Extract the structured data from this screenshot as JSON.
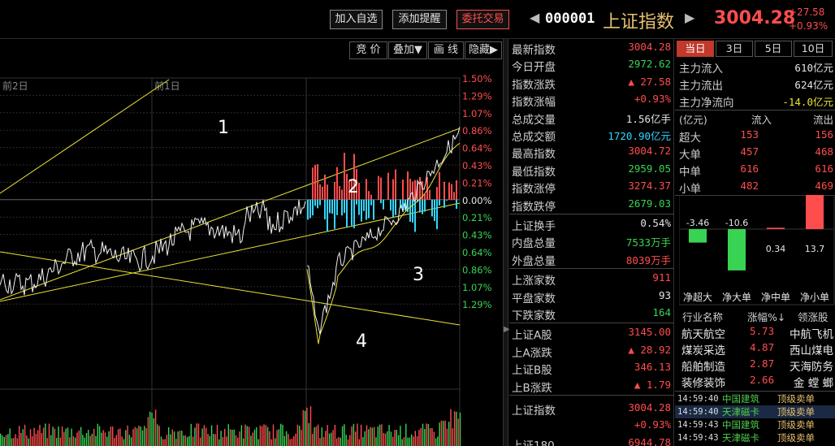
{
  "header": {
    "btn_add_watch": "加入自选",
    "btn_add_alert": "添加提醒",
    "btn_trade": "委托交易",
    "nav_prev": "◀",
    "nav_next": "▶",
    "code": "000001",
    "name": "上证指数",
    "price": "3004.28",
    "change": "+27.58",
    "change_pct": "+0.93%"
  },
  "chart_tools": [
    "竞 价",
    "叠加▼",
    "画 线",
    "隐藏▶"
  ],
  "colors": {
    "up": "#ff4d4d",
    "down": "#39d353",
    "flat": "#e6e6e6",
    "cyan": "#33d6ff",
    "yellow": "#e8e337",
    "gold": "#e8c070"
  },
  "chart_data": {
    "type": "line",
    "day_labels": [
      "前2日",
      "前1日"
    ],
    "annotations": [
      "1",
      "2",
      "3",
      "4"
    ],
    "pct_axis": [
      {
        "label": "1.50%",
        "dir": "up"
      },
      {
        "label": "1.29%",
        "dir": "up"
      },
      {
        "label": "1.07%",
        "dir": "up"
      },
      {
        "label": "0.86%",
        "dir": "up"
      },
      {
        "label": "0.64%",
        "dir": "up"
      },
      {
        "label": "0.43%",
        "dir": "up"
      },
      {
        "label": "0.21%",
        "dir": "up"
      },
      {
        "label": "0.00%",
        "dir": "flat"
      },
      {
        "label": "0.21%",
        "dir": "down"
      },
      {
        "label": "0.43%",
        "dir": "down"
      },
      {
        "label": "0.64%",
        "dir": "down"
      },
      {
        "label": "0.86%",
        "dir": "down"
      },
      {
        "label": "1.07%",
        "dir": "down"
      },
      {
        "label": "1.29%",
        "dir": "down"
      }
    ]
  },
  "stats": {
    "rows1": [
      {
        "label": "最新指数",
        "value": "3004.28",
        "color": "up"
      },
      {
        "label": "今日开盘",
        "value": "2972.62",
        "color": "down"
      },
      {
        "label": "指数涨跌",
        "value": "▲ 27.58",
        "color": "up"
      },
      {
        "label": "指数涨幅",
        "value": "+0.93%",
        "color": "up"
      },
      {
        "label": "总成交量",
        "value": "1.56亿手",
        "color": "flat"
      },
      {
        "label": "总成交额",
        "value": "1720.90亿元",
        "color": "cyan"
      },
      {
        "label": "最高指数",
        "value": "3004.72",
        "color": "up"
      },
      {
        "label": "最低指数",
        "value": "2959.05",
        "color": "down"
      },
      {
        "label": "指数涨停",
        "value": "3274.37",
        "color": "up"
      },
      {
        "label": "指数跌停",
        "value": "2679.03",
        "color": "down"
      }
    ],
    "rows2": [
      {
        "label": "上证换手",
        "value": "0.54%",
        "color": "flat"
      },
      {
        "label": "内盘总量",
        "value": "7533万手",
        "color": "down"
      },
      {
        "label": "外盘总量",
        "value": "8039万手",
        "color": "up"
      }
    ],
    "rows3": [
      {
        "label": "上涨家数",
        "value": "911",
        "color": "up"
      },
      {
        "label": "平盘家数",
        "value": "93",
        "color": "flat"
      },
      {
        "label": "下跌家数",
        "value": "164",
        "color": "down"
      }
    ],
    "rows4": [
      {
        "label": "上证A股",
        "value": "3145.00",
        "color": "up"
      },
      {
        "label": "上A涨跌",
        "value": "▲ 28.92",
        "color": "up"
      },
      {
        "label": "上证B股",
        "value": "346.13",
        "color": "up"
      },
      {
        "label": "上B涨跌",
        "value": "▲ 1.79",
        "color": "up"
      }
    ],
    "rows5": [
      {
        "label": "上证指数",
        "value": "3004.28",
        "color": "up"
      },
      {
        "label": "",
        "value": "+0.93%",
        "color": "up"
      },
      {
        "label": "上证180",
        "value": "6944.78",
        "color": "up"
      }
    ]
  },
  "flow": {
    "tabs": [
      "当日",
      "3日",
      "5日",
      "10日"
    ],
    "summary": [
      {
        "label": "主力流入",
        "value": "610亿元",
        "color": "up"
      },
      {
        "label": "主力流出",
        "value": "624亿元",
        "color": "down"
      },
      {
        "label": "主力净流向",
        "value": "-14.0亿元",
        "color": "down"
      }
    ],
    "table_header": {
      "unit": "(亿元)",
      "in": "流入",
      "out": "流出"
    },
    "table": [
      {
        "label": "超大",
        "in": "153",
        "out": "156"
      },
      {
        "label": "大单",
        "in": "457",
        "out": "468"
      },
      {
        "label": "中单",
        "in": "616",
        "out": "616"
      },
      {
        "label": "小单",
        "in": "482",
        "out": "469"
      }
    ],
    "net_bars": [
      {
        "label": "净超大",
        "value": -3.46,
        "text": "-3.46"
      },
      {
        "label": "净大单",
        "value": -10.6,
        "text": "-10.6"
      },
      {
        "label": "净中单",
        "value": 0.34,
        "text": "0.34"
      },
      {
        "label": "净小单",
        "value": 13.7,
        "text": "13.7"
      }
    ]
  },
  "sectors": {
    "header": {
      "name": "行业名称",
      "pct": "涨幅%↓",
      "leader": "领涨股"
    },
    "rows": [
      {
        "name": "航天航空",
        "pct": "5.73",
        "leader": "中航飞机"
      },
      {
        "name": "煤炭采选",
        "pct": "4.87",
        "leader": "西山煤电"
      },
      {
        "name": "船舶制造",
        "pct": "2.87",
        "leader": "天海防务"
      },
      {
        "name": "装修装饰",
        "pct": "2.66",
        "leader": "金 螳 螂"
      }
    ]
  },
  "ticker": [
    {
      "time": "14:59:40",
      "name": "中国建筑",
      "type": "顶级卖单"
    },
    {
      "time": "14:59:40",
      "name": "天津磁卡",
      "type": "顶级卖单"
    },
    {
      "time": "14:59:43",
      "name": "中国建筑",
      "type": "顶级卖单"
    },
    {
      "time": "14:59:43",
      "name": "天津磁卡",
      "type": "顶级卖单"
    }
  ]
}
